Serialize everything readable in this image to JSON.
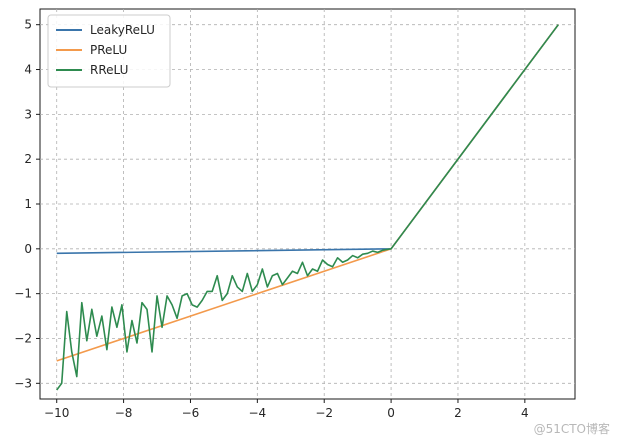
{
  "chart_data": {
    "type": "line",
    "title": "",
    "xlabel": "",
    "ylabel": "",
    "xlim": [
      -10.5,
      5.5
    ],
    "ylim": [
      -3.35,
      5.35
    ],
    "xticks": [
      -10,
      -8,
      -6,
      -4,
      -2,
      0,
      2,
      4
    ],
    "yticks": [
      -3,
      -2,
      -1,
      0,
      1,
      2,
      3,
      4,
      5
    ],
    "xtick_labels": [
      "−10",
      "−8",
      "−6",
      "−4",
      "−2",
      "0",
      "2",
      "4"
    ],
    "ytick_labels": [
      "−3",
      "−2",
      "−1",
      "0",
      "1",
      "2",
      "3",
      "4",
      "5"
    ],
    "grid": true,
    "legend_position": "top-left",
    "series": [
      {
        "name": "LeakyReLU",
        "color": "#3a75ab",
        "x": [
          -10,
          0,
          5
        ],
        "y": [
          -0.1,
          0,
          5
        ]
      },
      {
        "name": "PReLU",
        "color": "#f39a4c",
        "x": [
          -10,
          0,
          5
        ],
        "y": [
          -2.5,
          0,
          5
        ]
      },
      {
        "name": "RReLU",
        "color": "#2e8b4f",
        "x": [
          -10,
          -9.85,
          -9.7,
          -9.55,
          -9.4,
          -9.25,
          -9.1,
          -8.95,
          -8.8,
          -8.65,
          -8.5,
          -8.35,
          -8.2,
          -8.05,
          -7.9,
          -7.75,
          -7.6,
          -7.45,
          -7.3,
          -7.15,
          -7.0,
          -6.85,
          -6.7,
          -6.55,
          -6.4,
          -6.25,
          -6.1,
          -5.95,
          -5.8,
          -5.65,
          -5.5,
          -5.35,
          -5.2,
          -5.05,
          -4.9,
          -4.75,
          -4.6,
          -4.45,
          -4.3,
          -4.15,
          -4.0,
          -3.85,
          -3.7,
          -3.55,
          -3.4,
          -3.25,
          -3.1,
          -2.95,
          -2.8,
          -2.65,
          -2.5,
          -2.35,
          -2.2,
          -2.05,
          -1.9,
          -1.75,
          -1.6,
          -1.45,
          -1.3,
          -1.15,
          -1.0,
          -0.85,
          -0.7,
          -0.55,
          -0.4,
          -0.25,
          -0.1,
          0,
          5
        ],
        "y": [
          -3.15,
          -3.0,
          -1.4,
          -2.3,
          -2.85,
          -1.2,
          -2.05,
          -1.35,
          -1.95,
          -1.5,
          -2.25,
          -1.3,
          -1.75,
          -1.25,
          -2.3,
          -1.6,
          -2.1,
          -1.2,
          -1.35,
          -2.3,
          -1.05,
          -1.75,
          -1.05,
          -1.25,
          -1.55,
          -1.05,
          -1.0,
          -1.25,
          -1.3,
          -1.15,
          -0.95,
          -0.95,
          -0.6,
          -1.15,
          -1.0,
          -0.6,
          -0.85,
          -0.95,
          -0.55,
          -0.95,
          -0.8,
          -0.45,
          -0.85,
          -0.6,
          -0.55,
          -0.8,
          -0.65,
          -0.5,
          -0.55,
          -0.3,
          -0.6,
          -0.45,
          -0.5,
          -0.25,
          -0.35,
          -0.4,
          -0.2,
          -0.3,
          -0.25,
          -0.15,
          -0.2,
          -0.12,
          -0.1,
          -0.05,
          -0.08,
          -0.03,
          -0.01,
          0,
          5
        ]
      }
    ]
  },
  "watermark": "@51CTO博客"
}
